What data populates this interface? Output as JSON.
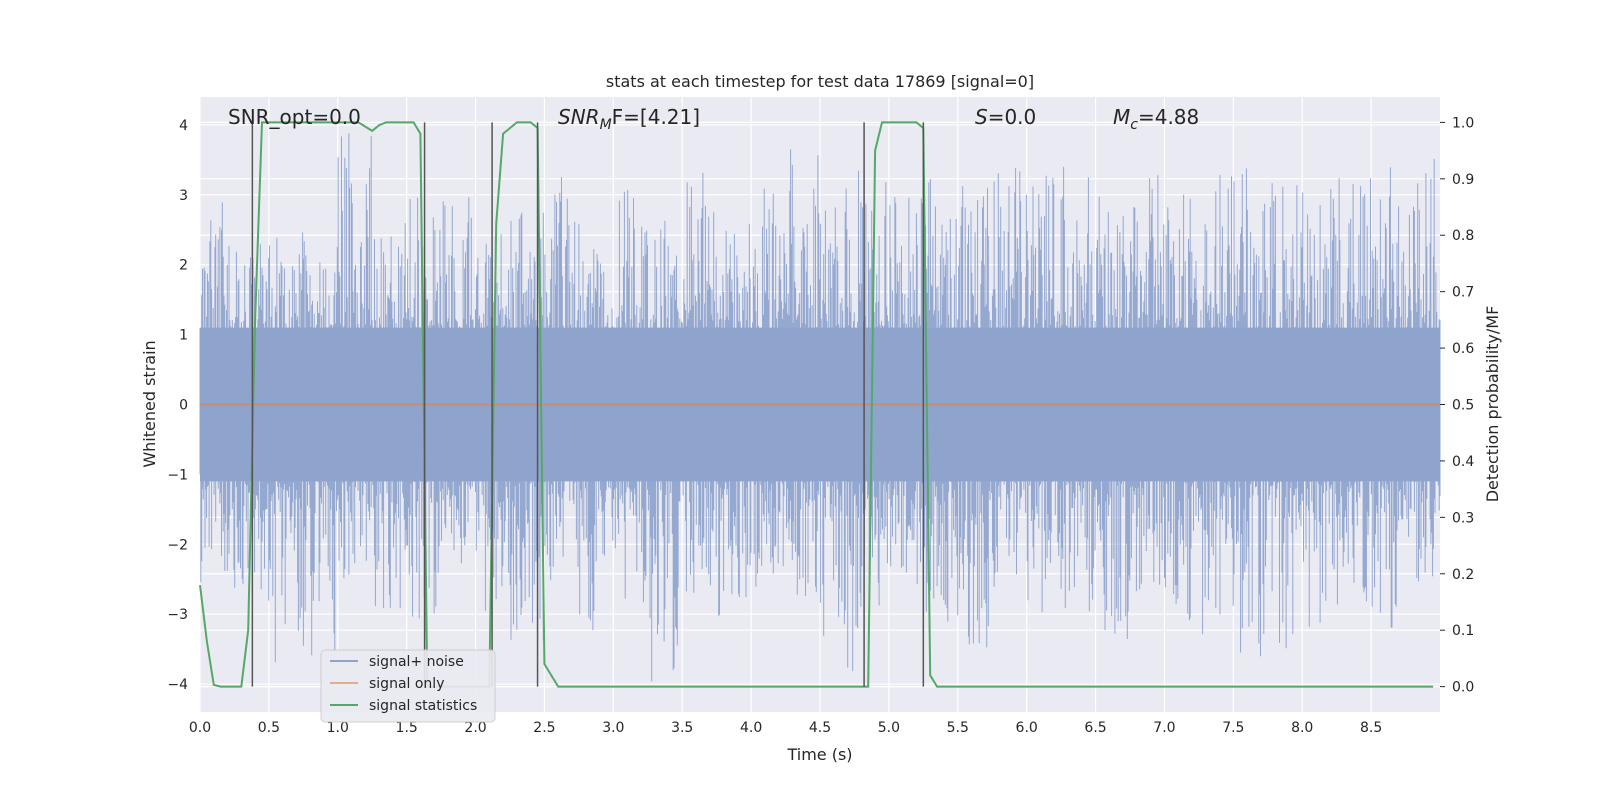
{
  "chart_data": {
    "type": "line",
    "title": "stats at each timestep for test data 17869 [signal=0]",
    "xlabel": "Time (s)",
    "ylabel": "Whitened strain",
    "ylabel_right": "Detection probability/MF",
    "xlim": [
      0,
      9
    ],
    "ylim": [
      -4.4,
      4.4
    ],
    "ylim_right": [
      -0.045,
      1.045
    ],
    "x_ticks": [
      "0.0",
      "0.5",
      "1.0",
      "1.5",
      "2.0",
      "2.5",
      "3.0",
      "3.5",
      "4.0",
      "4.5",
      "5.0",
      "5.5",
      "6.0",
      "6.5",
      "7.0",
      "7.5",
      "8.0",
      "8.5"
    ],
    "y_ticks": [
      "−4",
      "−3",
      "−2",
      "−1",
      "0",
      "1",
      "2",
      "3",
      "4"
    ],
    "y_ticks_right": [
      "0.0",
      "0.1",
      "0.2",
      "0.3",
      "0.4",
      "0.5",
      "0.6",
      "0.7",
      "0.8",
      "0.9",
      "1.0"
    ],
    "grid": true,
    "annotations": {
      "snr_opt": "SNR_opt=0.0",
      "snr_mf_main": "SNR",
      "snr_mf_sub": "M",
      "snr_mf_rest": "F=[4.21]",
      "s_main": "S",
      "s_rest": "=0.0",
      "mc_main": "M",
      "mc_sub": "c",
      "mc_rest": "=4.88"
    },
    "legend": {
      "placement": "lower-left",
      "entries": [
        "signal+ noise",
        "signal only",
        "signal statistics"
      ]
    },
    "series": [
      {
        "name": "signal+ noise",
        "color": "#8fa4cd",
        "axis": "left",
        "note_upper_envelope": [
          3.2,
          2.3,
          2.5,
          2.4,
          3.9,
          2.6,
          3.0,
          3.2,
          2.5,
          2.8,
          3.3,
          2.4,
          3.4,
          2.7,
          3.6,
          2.6,
          3.2,
          3.9,
          3.1,
          3.4,
          3.0,
          3.6,
          3.2,
          3.4,
          3.3,
          3.5,
          3.1,
          3.3,
          3.4,
          3.3,
          3.4,
          3.3,
          3.2,
          3.4,
          3.4,
          3.6
        ],
        "note_lower_envelope": [
          -2.6,
          -2.9,
          -3.7,
          -4.0,
          -2.5,
          -3.0,
          -3.2,
          -2.6,
          -3.0,
          -3.4,
          -2.6,
          -3.3,
          -3.0,
          -4.0,
          -2.7,
          -3.2,
          -2.8,
          -3.0,
          -4.0,
          -3.3,
          -2.6,
          -3.2,
          -3.5,
          -2.9,
          -3.1,
          -3.0,
          -3.4,
          -2.9,
          -3.1,
          -3.3,
          -3.7,
          -3.5,
          -3.2,
          -2.9,
          -3.2,
          -2.7
        ]
      },
      {
        "name": "signal only",
        "color": "#dd8452",
        "axis": "left",
        "x": [
          0,
          9
        ],
        "y": [
          0,
          0
        ]
      },
      {
        "name": "signal statistics",
        "color": "#55a868",
        "axis": "right",
        "x": [
          0.0,
          0.05,
          0.1,
          0.15,
          0.3,
          0.35,
          0.4,
          0.45,
          0.5,
          1.0,
          1.15,
          1.25,
          1.3,
          1.35,
          1.45,
          1.55,
          1.6,
          1.65,
          1.7,
          2.0,
          2.1,
          2.15,
          2.2,
          2.3,
          2.4,
          2.45,
          2.5,
          2.6,
          4.8,
          4.85,
          4.9,
          4.95,
          5.2,
          5.25,
          5.3,
          5.35,
          5.4,
          8.95
        ],
        "y": [
          0.18,
          0.08,
          0.003,
          0.0,
          0.0,
          0.1,
          0.65,
          1.0,
          1.0,
          1.0,
          1.0,
          0.985,
          0.995,
          1.0,
          1.0,
          1.0,
          0.98,
          0.0,
          0.0,
          0.0,
          0.0,
          0.82,
          0.98,
          1.0,
          1.0,
          0.99,
          0.04,
          0.0,
          0.0,
          0.0,
          0.95,
          1.0,
          1.0,
          0.99,
          0.02,
          0.0,
          0.0,
          0.0
        ]
      }
    ],
    "vertical_markers": [
      0.38,
      1.63,
      2.12,
      2.45,
      4.82,
      5.25
    ]
  }
}
